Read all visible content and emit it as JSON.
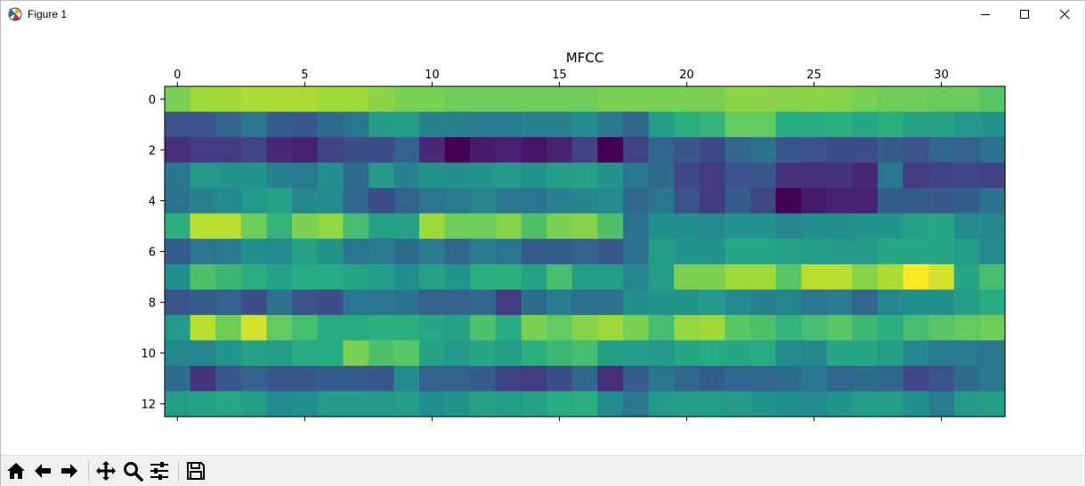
{
  "window": {
    "title": "Figure 1",
    "icon": "matplotlib-logo-icon",
    "controls": [
      "minimize-icon",
      "maximize-icon",
      "close-icon"
    ]
  },
  "chart_data": {
    "type": "heatmap",
    "title": "MFCC",
    "colormap": "viridis",
    "xlim": [
      -0.5,
      32.5
    ],
    "ylim": [
      12.5,
      -0.5
    ],
    "x_ticks": [
      0,
      5,
      10,
      15,
      20,
      25,
      30
    ],
    "y_ticks": [
      0,
      2,
      4,
      6,
      8,
      10,
      12
    ],
    "x_axis_position": "top",
    "n_rows": 13,
    "n_cols": 33,
    "normalized_values": [
      [
        0.8,
        0.86,
        0.86,
        0.88,
        0.88,
        0.88,
        0.86,
        0.86,
        0.83,
        0.8,
        0.8,
        0.78,
        0.78,
        0.78,
        0.78,
        0.78,
        0.78,
        0.8,
        0.8,
        0.8,
        0.8,
        0.8,
        0.83,
        0.83,
        0.82,
        0.83,
        0.82,
        0.8,
        0.78,
        0.78,
        0.77,
        0.77,
        0.74
      ],
      [
        0.26,
        0.26,
        0.33,
        0.4,
        0.3,
        0.28,
        0.36,
        0.4,
        0.55,
        0.56,
        0.45,
        0.44,
        0.42,
        0.42,
        0.44,
        0.44,
        0.48,
        0.4,
        0.33,
        0.56,
        0.64,
        0.66,
        0.76,
        0.76,
        0.62,
        0.62,
        0.64,
        0.6,
        0.64,
        0.58,
        0.58,
        0.53,
        0.52
      ],
      [
        0.14,
        0.18,
        0.18,
        0.22,
        0.12,
        0.1,
        0.2,
        0.24,
        0.24,
        0.32,
        0.12,
        0.0,
        0.08,
        0.1,
        0.06,
        0.1,
        0.2,
        0.0,
        0.2,
        0.34,
        0.28,
        0.22,
        0.34,
        0.38,
        0.28,
        0.26,
        0.24,
        0.24,
        0.3,
        0.26,
        0.34,
        0.32,
        0.38
      ],
      [
        0.4,
        0.54,
        0.52,
        0.52,
        0.44,
        0.42,
        0.5,
        0.36,
        0.54,
        0.44,
        0.52,
        0.5,
        0.52,
        0.54,
        0.52,
        0.56,
        0.58,
        0.52,
        0.4,
        0.36,
        0.22,
        0.18,
        0.26,
        0.28,
        0.14,
        0.14,
        0.16,
        0.12,
        0.4,
        0.18,
        0.2,
        0.22,
        0.2
      ],
      [
        0.38,
        0.44,
        0.48,
        0.54,
        0.58,
        0.46,
        0.48,
        0.34,
        0.24,
        0.32,
        0.4,
        0.42,
        0.46,
        0.4,
        0.4,
        0.44,
        0.46,
        0.48,
        0.34,
        0.4,
        0.26,
        0.18,
        0.3,
        0.22,
        0.0,
        0.08,
        0.1,
        0.1,
        0.3,
        0.3,
        0.28,
        0.3,
        0.38
      ],
      [
        0.64,
        0.9,
        0.9,
        0.78,
        0.66,
        0.8,
        0.84,
        0.7,
        0.58,
        0.58,
        0.86,
        0.78,
        0.78,
        0.82,
        0.72,
        0.8,
        0.82,
        0.72,
        0.38,
        0.5,
        0.5,
        0.48,
        0.52,
        0.52,
        0.46,
        0.5,
        0.5,
        0.52,
        0.52,
        0.58,
        0.6,
        0.48,
        0.46
      ],
      [
        0.3,
        0.4,
        0.42,
        0.5,
        0.48,
        0.58,
        0.52,
        0.4,
        0.42,
        0.36,
        0.42,
        0.34,
        0.42,
        0.4,
        0.3,
        0.3,
        0.32,
        0.28,
        0.38,
        0.56,
        0.52,
        0.52,
        0.6,
        0.6,
        0.58,
        0.56,
        0.54,
        0.54,
        0.6,
        0.6,
        0.6,
        0.56,
        0.48
      ],
      [
        0.5,
        0.72,
        0.68,
        0.64,
        0.58,
        0.62,
        0.62,
        0.6,
        0.56,
        0.5,
        0.58,
        0.52,
        0.64,
        0.64,
        0.58,
        0.7,
        0.56,
        0.56,
        0.46,
        0.56,
        0.8,
        0.8,
        0.86,
        0.86,
        0.74,
        0.9,
        0.9,
        0.82,
        0.88,
        1.0,
        0.94,
        0.6,
        0.7
      ],
      [
        0.26,
        0.3,
        0.32,
        0.24,
        0.38,
        0.26,
        0.24,
        0.4,
        0.4,
        0.38,
        0.32,
        0.32,
        0.34,
        0.18,
        0.36,
        0.42,
        0.38,
        0.38,
        0.5,
        0.52,
        0.52,
        0.54,
        0.48,
        0.44,
        0.46,
        0.4,
        0.42,
        0.34,
        0.46,
        0.5,
        0.5,
        0.56,
        0.62
      ],
      [
        0.54,
        0.9,
        0.78,
        0.94,
        0.76,
        0.7,
        0.62,
        0.62,
        0.64,
        0.64,
        0.6,
        0.58,
        0.72,
        0.62,
        0.8,
        0.76,
        0.82,
        0.86,
        0.8,
        0.7,
        0.84,
        0.86,
        0.74,
        0.72,
        0.66,
        0.7,
        0.74,
        0.68,
        0.64,
        0.7,
        0.74,
        0.76,
        0.78
      ],
      [
        0.46,
        0.46,
        0.52,
        0.58,
        0.56,
        0.62,
        0.62,
        0.8,
        0.72,
        0.74,
        0.58,
        0.54,
        0.6,
        0.56,
        0.64,
        0.68,
        0.7,
        0.56,
        0.56,
        0.54,
        0.6,
        0.62,
        0.6,
        0.62,
        0.48,
        0.46,
        0.6,
        0.6,
        0.56,
        0.46,
        0.42,
        0.42,
        0.4
      ],
      [
        0.36,
        0.16,
        0.28,
        0.32,
        0.28,
        0.28,
        0.3,
        0.3,
        0.28,
        0.48,
        0.32,
        0.32,
        0.3,
        0.2,
        0.18,
        0.24,
        0.34,
        0.14,
        0.3,
        0.4,
        0.34,
        0.3,
        0.34,
        0.34,
        0.36,
        0.4,
        0.34,
        0.36,
        0.34,
        0.22,
        0.26,
        0.36,
        0.4
      ],
      [
        0.56,
        0.58,
        0.6,
        0.56,
        0.48,
        0.5,
        0.54,
        0.54,
        0.54,
        0.56,
        0.5,
        0.52,
        0.58,
        0.56,
        0.58,
        0.62,
        0.64,
        0.48,
        0.4,
        0.54,
        0.56,
        0.56,
        0.54,
        0.52,
        0.5,
        0.48,
        0.52,
        0.56,
        0.56,
        0.5,
        0.42,
        0.54,
        0.56
      ]
    ]
  },
  "toolbar": {
    "buttons": [
      {
        "name": "home-icon",
        "label": "Home"
      },
      {
        "name": "back-icon",
        "label": "Back"
      },
      {
        "name": "forward-icon",
        "label": "Forward"
      },
      {
        "name": "pan-icon",
        "label": "Pan"
      },
      {
        "name": "zoom-icon",
        "label": "Zoom"
      },
      {
        "name": "subplots-icon",
        "label": "Subplots"
      },
      {
        "name": "save-icon",
        "label": "Save"
      }
    ]
  }
}
